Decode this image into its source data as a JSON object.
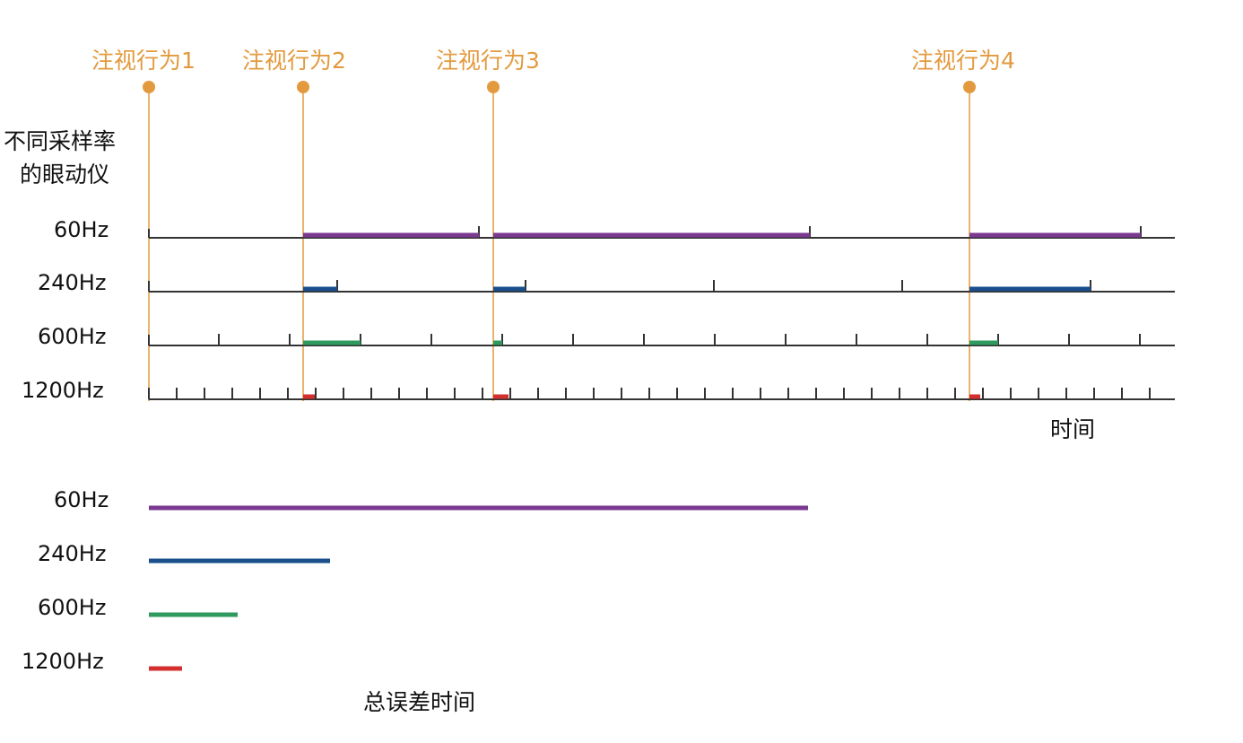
{
  "diagram": {
    "fixations": [
      {
        "label": "注视行为1"
      },
      {
        "label": "注视行为2"
      },
      {
        "label": "注视行为3"
      },
      {
        "label": "注视行为4"
      }
    ],
    "y_axis_title": [
      "不同采样率",
      "的眼动仪"
    ],
    "time_label": "时间",
    "total_error_label": "总误差时间",
    "colors": {
      "fixation": "#e39a3e",
      "axis": "#333333",
      "60Hz": "#7b3a91",
      "240Hz": "#1a4f8c",
      "600Hz": "#2e9a5e",
      "1200Hz": "#d32f2f"
    },
    "tracks": [
      {
        "rate": "60Hz"
      },
      {
        "rate": "240Hz"
      },
      {
        "rate": "600Hz"
      },
      {
        "rate": "1200Hz"
      }
    ],
    "totals": [
      {
        "rate": "60Hz"
      },
      {
        "rate": "240Hz"
      },
      {
        "rate": "600Hz"
      },
      {
        "rate": "1200Hz"
      }
    ]
  }
}
